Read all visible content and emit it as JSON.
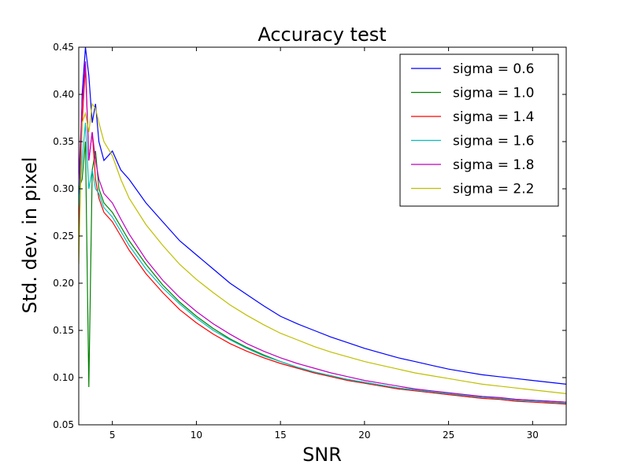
{
  "chart_data": {
    "type": "line",
    "title": "Accuracy test",
    "xlabel": "SNR",
    "ylabel": "Std. dev. in pixel",
    "xlim": [
      3,
      32
    ],
    "ylim": [
      0.05,
      0.45
    ],
    "xticks": [
      5,
      10,
      15,
      20,
      25,
      30
    ],
    "yticks": [
      0.05,
      0.1,
      0.15,
      0.2,
      0.25,
      0.3,
      0.35,
      0.4,
      0.45
    ],
    "xtick_labels": [
      "5",
      "10",
      "15",
      "20",
      "25",
      "30"
    ],
    "ytick_labels": [
      "0.05",
      "0.10",
      "0.15",
      "0.20",
      "0.25",
      "0.30",
      "0.35",
      "0.40",
      "0.45"
    ],
    "grid": false,
    "legend_position": "top-right",
    "x": [
      3.0,
      3.2,
      3.4,
      3.6,
      3.8,
      4.0,
      4.2,
      4.5,
      5.0,
      5.5,
      6.0,
      7.0,
      8.0,
      9.0,
      10.0,
      11.0,
      12.0,
      13.0,
      14.0,
      15.0,
      16.0,
      17.0,
      18.0,
      19.0,
      20.0,
      21.0,
      22.0,
      23.0,
      24.0,
      25.0,
      26.0,
      27.0,
      28.0,
      29.0,
      30.0,
      31.0,
      32.0
    ],
    "series": [
      {
        "name": "sigma = 0.6",
        "color": "#0000ff",
        "values": [
          0.26,
          0.4,
          0.45,
          0.42,
          0.37,
          0.39,
          0.35,
          0.33,
          0.34,
          0.32,
          0.31,
          0.285,
          0.265,
          0.245,
          0.23,
          0.215,
          0.2,
          0.188,
          0.176,
          0.165,
          0.157,
          0.15,
          0.143,
          0.137,
          0.131,
          0.126,
          0.121,
          0.117,
          0.113,
          0.109,
          0.106,
          0.103,
          0.101,
          0.099,
          0.097,
          0.095,
          0.093
        ]
      },
      {
        "name": "sigma = 1.0",
        "color": "#008000",
        "values": [
          0.3,
          0.31,
          0.35,
          0.09,
          0.32,
          0.34,
          0.3,
          0.285,
          0.275,
          0.26,
          0.245,
          0.22,
          0.198,
          0.18,
          0.165,
          0.152,
          0.141,
          0.132,
          0.124,
          0.117,
          0.111,
          0.106,
          0.102,
          0.098,
          0.095,
          0.092,
          0.089,
          0.087,
          0.085,
          0.083,
          0.081,
          0.08,
          0.078,
          0.077,
          0.076,
          0.075,
          0.074
        ]
      },
      {
        "name": "sigma = 1.4",
        "color": "#ff0000",
        "values": [
          0.25,
          0.37,
          0.43,
          0.33,
          0.36,
          0.31,
          0.29,
          0.275,
          0.265,
          0.25,
          0.235,
          0.21,
          0.19,
          0.172,
          0.158,
          0.146,
          0.136,
          0.128,
          0.121,
          0.115,
          0.11,
          0.105,
          0.101,
          0.097,
          0.094,
          0.091,
          0.088,
          0.086,
          0.084,
          0.082,
          0.08,
          0.078,
          0.077,
          0.075,
          0.074,
          0.073,
          0.072
        ]
      },
      {
        "name": "sigma = 1.6",
        "color": "#00bfbf",
        "values": [
          0.28,
          0.33,
          0.37,
          0.3,
          0.32,
          0.3,
          0.295,
          0.28,
          0.27,
          0.255,
          0.24,
          0.215,
          0.195,
          0.178,
          0.163,
          0.15,
          0.14,
          0.131,
          0.123,
          0.117,
          0.111,
          0.106,
          0.102,
          0.098,
          0.095,
          0.092,
          0.089,
          0.087,
          0.085,
          0.083,
          0.081,
          0.079,
          0.078,
          0.076,
          0.075,
          0.074,
          0.073
        ]
      },
      {
        "name": "sigma = 1.8",
        "color": "#bf00bf",
        "values": [
          0.31,
          0.39,
          0.435,
          0.33,
          0.36,
          0.33,
          0.31,
          0.295,
          0.285,
          0.268,
          0.252,
          0.225,
          0.203,
          0.185,
          0.17,
          0.157,
          0.146,
          0.136,
          0.128,
          0.121,
          0.115,
          0.11,
          0.105,
          0.101,
          0.097,
          0.094,
          0.091,
          0.088,
          0.086,
          0.084,
          0.082,
          0.08,
          0.079,
          0.077,
          0.076,
          0.075,
          0.074
        ]
      },
      {
        "name": "sigma = 2.2",
        "color": "#bfbf00",
        "values": [
          0.22,
          0.37,
          0.38,
          0.36,
          0.39,
          0.385,
          0.37,
          0.35,
          0.335,
          0.31,
          0.29,
          0.262,
          0.24,
          0.22,
          0.204,
          0.19,
          0.177,
          0.166,
          0.156,
          0.147,
          0.14,
          0.133,
          0.127,
          0.122,
          0.117,
          0.113,
          0.109,
          0.105,
          0.102,
          0.099,
          0.096,
          0.093,
          0.091,
          0.089,
          0.087,
          0.085,
          0.083
        ]
      }
    ]
  }
}
